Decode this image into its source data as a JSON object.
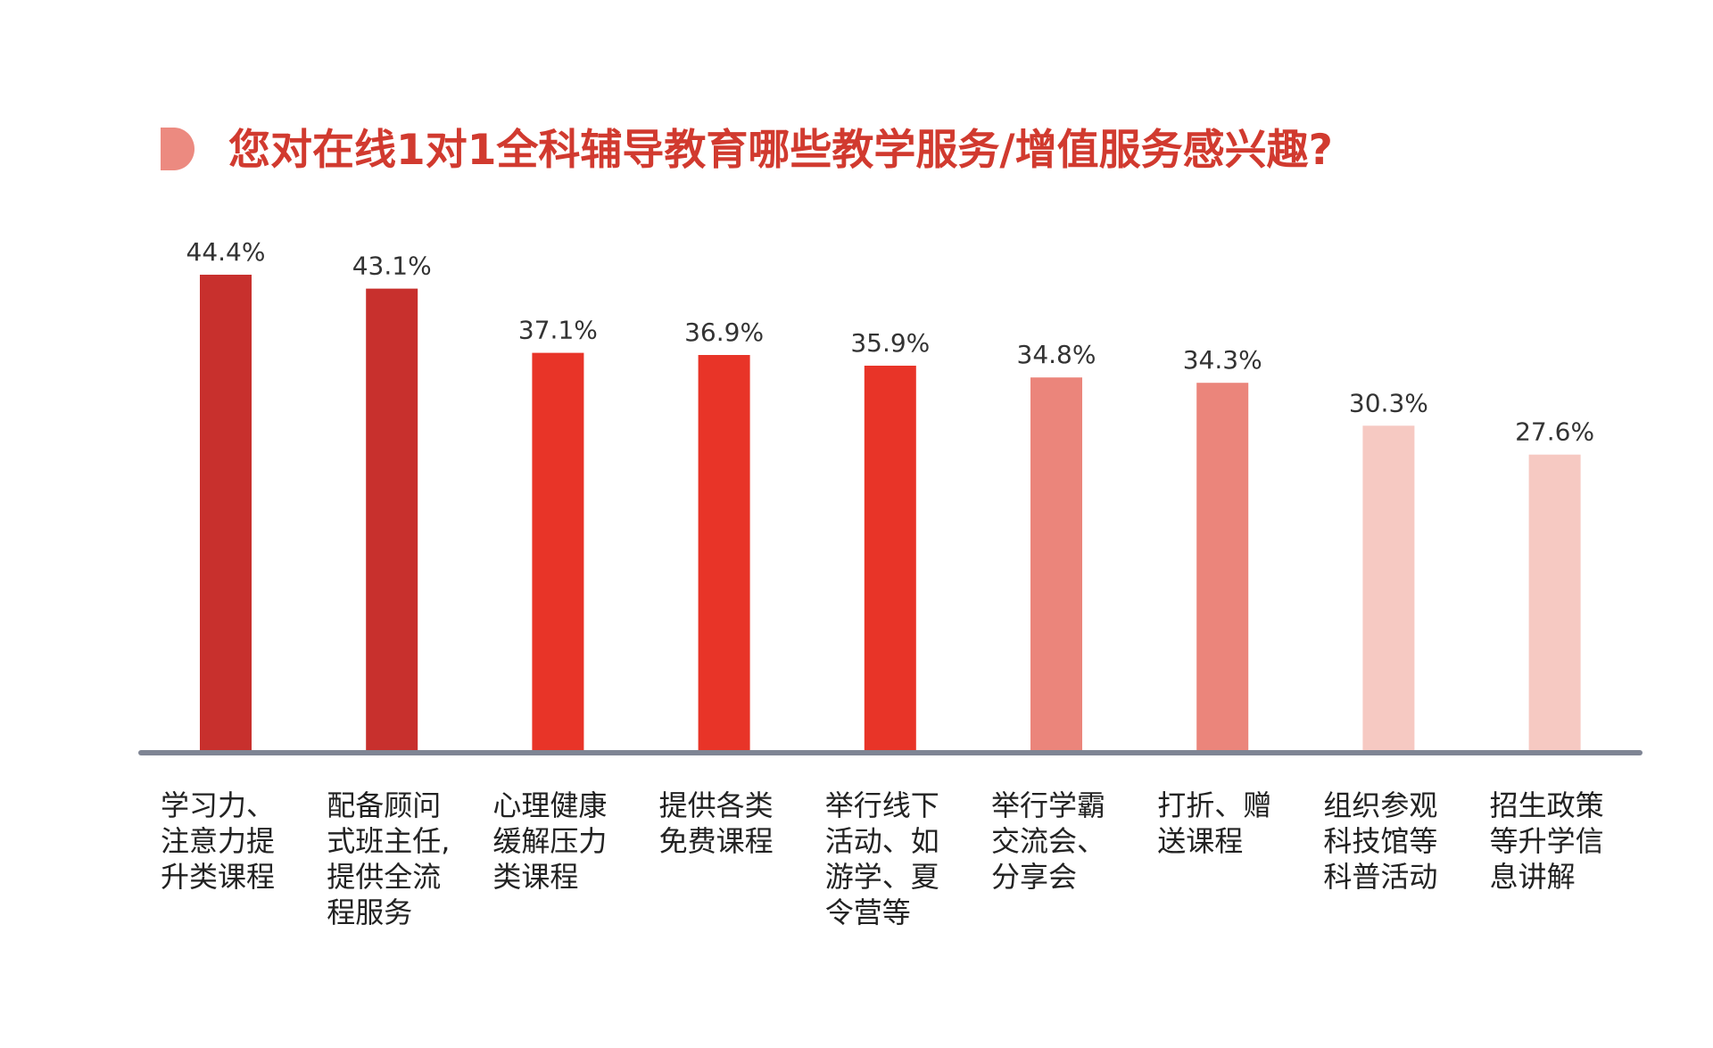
{
  "colors": {
    "title": "#d13a2f",
    "title_marker": "#ec8a80",
    "axis": "#7f8594",
    "value_text": "#333333",
    "category_text": "#222222"
  },
  "chart_data": {
    "type": "bar",
    "title": "您对在线1对1全科辅导教育哪些教学服务/增值服务感兴趣?",
    "xlabel": "",
    "ylabel": "",
    "ylim": [
      0,
      50
    ],
    "grid": false,
    "legend": "none",
    "value_suffix": "%",
    "categories": [
      [
        "学习力、",
        "注意力提",
        "升类课程"
      ],
      [
        "配备顾问",
        "式班主任,",
        "提供全流",
        "程服务"
      ],
      [
        "心理健康",
        "缓解压力",
        "类课程"
      ],
      [
        "提供各类",
        "免费课程"
      ],
      [
        "举行线下",
        "活动、如",
        "游学、夏",
        "令营等"
      ],
      [
        "举行学霸",
        "交流会、",
        "分享会"
      ],
      [
        "打折、赠",
        "送课程"
      ],
      [
        "组织参观",
        "科技馆等",
        "科普活动"
      ],
      [
        "招生政策",
        "等升学信",
        "息讲解"
      ]
    ],
    "values": [
      44.4,
      43.1,
      37.1,
      36.9,
      35.9,
      34.8,
      34.3,
      30.3,
      27.6
    ],
    "value_labels": [
      "44.4%",
      "43.1%",
      "37.1%",
      "36.9%",
      "35.9%",
      "34.8%",
      "34.3%",
      "30.3%",
      "27.6%"
    ],
    "bar_colors": [
      "#c8302d",
      "#c8302d",
      "#e83428",
      "#e83428",
      "#e83428",
      "#eb857b",
      "#eb857b",
      "#f6c9c2",
      "#f6c9c2"
    ]
  }
}
